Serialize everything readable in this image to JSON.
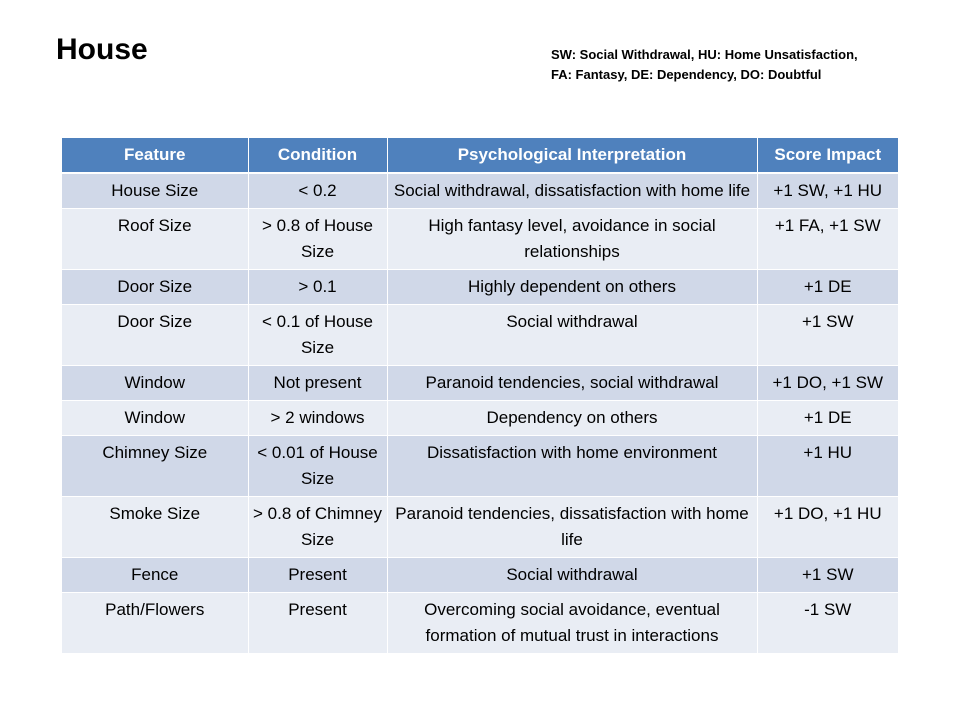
{
  "title": "House",
  "legend": {
    "line1": "SW: Social Withdrawal, HU: Home Unsatisfaction,",
    "line2": "FA: Fantasy, DE: Dependency, DO: Doubtful"
  },
  "table": {
    "headers": [
      "Feature",
      "Condition",
      "Psychological  Interpretation",
      "Score Impact"
    ],
    "rows": [
      {
        "feature": "House Size",
        "condition": "< 0.2",
        "interpretation": "Social withdrawal, dissatisfaction with home life",
        "score": "+1 SW, +1 HU"
      },
      {
        "feature": "Roof Size",
        "condition": "> 0.8 of House Size",
        "interpretation": "High fantasy level, avoidance in social relationships",
        "score": "+1 FA, +1 SW"
      },
      {
        "feature": "Door Size",
        "condition": "> 0.1",
        "interpretation": "Highly dependent on others",
        "score": "+1 DE"
      },
      {
        "feature": "Door Size",
        "condition": "< 0.1 of House Size",
        "interpretation": "Social withdrawal",
        "score": "+1 SW"
      },
      {
        "feature": "Window",
        "condition": "Not present",
        "interpretation": "Paranoid tendencies, social withdrawal",
        "score": "+1 DO, +1 SW"
      },
      {
        "feature": "Window",
        "condition": "> 2 windows",
        "interpretation": "Dependency on others",
        "score": "+1 DE"
      },
      {
        "feature": "Chimney Size",
        "condition": "< 0.01 of House Size",
        "interpretation": "Dissatisfaction with home environment",
        "score": "+1 HU"
      },
      {
        "feature": "Smoke Size",
        "condition": "> 0.8 of Chimney Size",
        "interpretation": "Paranoid tendencies, dissatisfaction with home life",
        "score": "+1 DO, +1 HU"
      },
      {
        "feature": "Fence",
        "condition": "Present",
        "interpretation": "Social withdrawal",
        "score": "+1 SW"
      },
      {
        "feature": "Path/Flowers",
        "condition": "Present",
        "interpretation": "Overcoming social avoidance, eventual formation of mutual trust in interactions",
        "score": "-1 SW"
      }
    ]
  }
}
